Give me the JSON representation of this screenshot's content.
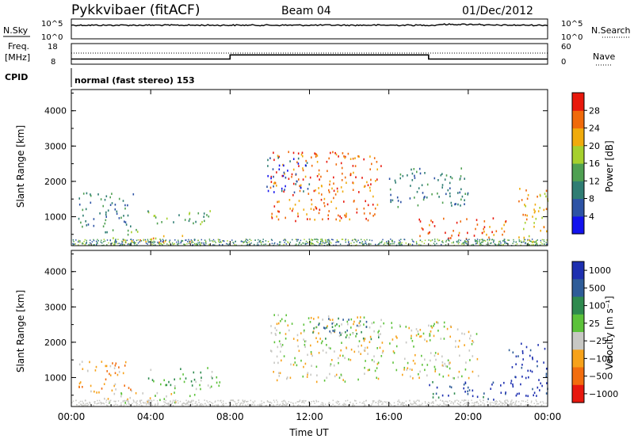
{
  "header": {
    "radar": "Pykkvibaer (fitACF)",
    "beam": "Beam 04",
    "date": "01/Dec/2012"
  },
  "noise_panel": {
    "left_label": "N.Sky",
    "right_label": "N.Search",
    "left_ticks": [
      "10^5",
      "10^0"
    ],
    "right_ticks": [
      "10^5",
      "10^0"
    ]
  },
  "freq_panel": {
    "left_label_1": "Freq.",
    "left_label_2": "[MHz]",
    "right_label": "Nave",
    "left_ticks": [
      "18",
      "8"
    ],
    "right_ticks": [
      "60",
      "0"
    ],
    "freq_steps_mhz": [
      {
        "from": 0,
        "to": 8,
        "value": 10.5
      },
      {
        "from": 8,
        "to": 18,
        "value": 12.5
      },
      {
        "from": 18,
        "to": 24,
        "value": 10.5
      }
    ]
  },
  "cpid": {
    "label": "CPID",
    "value": "normal (fast stereo) 153"
  },
  "chart_data": [
    {
      "type": "heatmap",
      "ylabel": "Slant Range [km]",
      "yticks": [
        "1000",
        "2000",
        "3000",
        "4000"
      ],
      "ylim": [
        180,
        4600
      ],
      "xlim": [
        0,
        24
      ],
      "colorbar_label": "Power [dB]",
      "colorbar_ticks": [
        "4",
        "8",
        "12",
        "16",
        "20",
        "24",
        "28"
      ],
      "colorbar_colors": [
        "#1212ee",
        "#2d53a5",
        "#2f7d73",
        "#4fa052",
        "#a6d02d",
        "#f0ab0c",
        "#f06a0a",
        "#e8180c"
      ],
      "scatter_regions": [
        {
          "t0": 0.3,
          "t1": 3.2,
          "r0": 700,
          "r1": 1700,
          "level": 2
        },
        {
          "t0": 1.2,
          "t1": 3.4,
          "r0": 500,
          "r1": 700,
          "level": 3
        },
        {
          "t0": 2.0,
          "t1": 6.5,
          "r0": 300,
          "r1": 500,
          "level": 5
        },
        {
          "t0": 3.8,
          "t1": 7.0,
          "r0": 750,
          "r1": 1200,
          "level": 3
        },
        {
          "t0": 10.0,
          "t1": 15.6,
          "r0": 900,
          "r1": 2900,
          "level": 6
        },
        {
          "t0": 9.8,
          "t1": 12.0,
          "r0": 1700,
          "r1": 2700,
          "level": 1
        },
        {
          "t0": 16.0,
          "t1": 20.0,
          "r0": 1300,
          "r1": 2400,
          "level": 2
        },
        {
          "t0": 17.5,
          "t1": 22.0,
          "r0": 400,
          "r1": 1000,
          "level": 6
        },
        {
          "t0": 22.5,
          "t1": 24.0,
          "r0": 300,
          "r1": 1900,
          "level": 5
        }
      ]
    },
    {
      "type": "heatmap",
      "ylabel": "Slant Range [km]",
      "yticks": [
        "1000",
        "2000",
        "3000",
        "4000"
      ],
      "ylim": [
        180,
        4600
      ],
      "xlim": [
        0,
        24
      ],
      "colorbar_label": "Velocity [m s⁻¹]",
      "colorbar_ticks": [
        "1000",
        "500",
        "100",
        "25",
        "−25",
        "−100",
        "−500",
        "−1000"
      ],
      "colorbar_colors": [
        "#1d2fb0",
        "#2e5c98",
        "#2e8a4e",
        "#5cc23a",
        "#c8c8c4",
        "#f7a21a",
        "#f26d0e",
        "#e7180e"
      ],
      "scatter_regions": [
        {
          "t0": 0.3,
          "t1": 3.2,
          "r0": 600,
          "r1": 1500,
          "level": 5
        },
        {
          "t0": 1.5,
          "t1": 6.5,
          "r0": 280,
          "r1": 600,
          "level": 4
        },
        {
          "t0": 3.8,
          "t1": 7.5,
          "r0": 700,
          "r1": 1300,
          "level": 3
        },
        {
          "t0": 10.0,
          "t1": 15.8,
          "r0": 900,
          "r1": 2800,
          "level": 4
        },
        {
          "t0": 12.0,
          "t1": 15.6,
          "r0": 2100,
          "r1": 2700,
          "level": 2
        },
        {
          "t0": 16.0,
          "t1": 20.5,
          "r0": 1000,
          "r1": 2600,
          "level": 4
        },
        {
          "t0": 18.0,
          "t1": 22.0,
          "r0": 400,
          "r1": 900,
          "level": 1
        },
        {
          "t0": 22.0,
          "t1": 24.0,
          "r0": 500,
          "r1": 2000,
          "level": 0
        }
      ]
    }
  ],
  "xaxis": {
    "ticks": [
      "00:00",
      "04:00",
      "08:00",
      "12:00",
      "16:00",
      "20:00",
      "00:00"
    ],
    "label": "Time UT"
  }
}
